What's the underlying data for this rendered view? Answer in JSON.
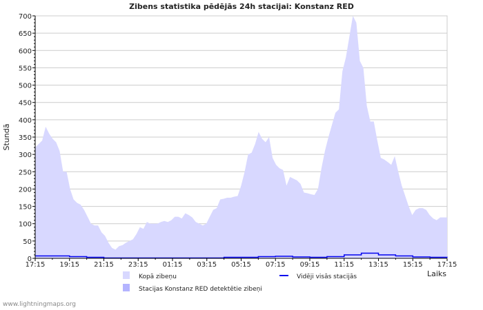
{
  "chart_data": {
    "type": "area",
    "title": "Zibens statistika pēdējās 24h stacijai: Konstanz RED",
    "xlabel": "Laiks",
    "ylabel": "Stundā",
    "ylim": [
      0,
      700
    ],
    "yticks": [
      "0",
      "50",
      "100",
      "150",
      "200",
      "250",
      "300",
      "350",
      "400",
      "450",
      "500",
      "550",
      "600",
      "650",
      "700"
    ],
    "xticks": [
      "17:15",
      "19:15",
      "21:15",
      "23:15",
      "01:15",
      "03:15",
      "05:15",
      "07:15",
      "09:15",
      "11:15",
      "13:15",
      "15:15",
      "17:15"
    ],
    "grid": true,
    "legend_placement": "bottom",
    "series": [
      {
        "name": "Kopā zibeņu",
        "kind": "area",
        "color": "#d8d8ff",
        "values": [
          320,
          330,
          340,
          380,
          360,
          345,
          335,
          310,
          250,
          250,
          200,
          170,
          160,
          155,
          140,
          120,
          100,
          95,
          95,
          75,
          65,
          45,
          30,
          25,
          35,
          38,
          45,
          50,
          55,
          70,
          90,
          85,
          105,
          100,
          100,
          100,
          105,
          108,
          105,
          110,
          120,
          120,
          115,
          130,
          125,
          118,
          105,
          100,
          95,
          100,
          120,
          140,
          145,
          170,
          172,
          175,
          175,
          178,
          180,
          210,
          250,
          300,
          305,
          330,
          365,
          345,
          335,
          350,
          290,
          270,
          260,
          255,
          210,
          235,
          230,
          225,
          215,
          190,
          188,
          185,
          183,
          200,
          260,
          310,
          350,
          385,
          420,
          430,
          540,
          580,
          640,
          700,
          680,
          570,
          550,
          440,
          395,
          395,
          340,
          290,
          285,
          278,
          270,
          295,
          250,
          210,
          180,
          150,
          125,
          140,
          145,
          145,
          140,
          125,
          115,
          110,
          118,
          118,
          118
        ]
      },
      {
        "name": "Stacijas Konstanz RED detektētie zibeņi",
        "kind": "area",
        "color": "#b4b4ff",
        "values": []
      },
      {
        "name": "Vidēji visās stacijās",
        "kind": "line",
        "color": "#0000ee",
        "values": [
          7,
          7,
          5,
          3,
          1,
          1,
          1,
          1,
          1,
          1,
          1,
          3,
          3,
          5,
          6,
          4,
          3,
          5,
          10,
          15,
          10,
          7,
          4,
          3,
          2
        ]
      }
    ]
  },
  "footer": "www.lightningmaps.org"
}
